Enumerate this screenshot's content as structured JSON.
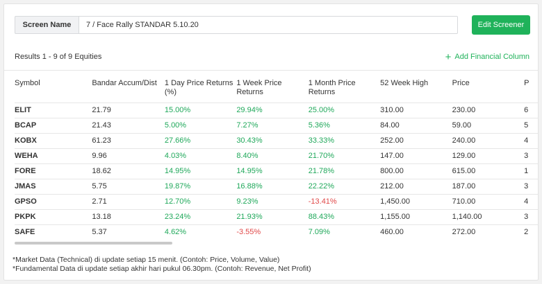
{
  "screener": {
    "label": "Screen Name",
    "value": "7 / Face Rally STANDAR 5.10.20",
    "edit_button": "Edit Screener"
  },
  "results_text": "Results 1 - 9 of 9 Equities",
  "add_column": {
    "icon": "plus-icon",
    "label": "Add Financial Column"
  },
  "colors": {
    "accent": "#1fb25a",
    "positive": "#1fa85a",
    "negative": "#e04848"
  },
  "table": {
    "columns": [
      "Symbol",
      "Bandar Accum/Dist",
      "1 Day Price Returns (%)",
      "1 Week Price Returns",
      "1 Month Price Returns",
      "52 Week High",
      "Price",
      "P"
    ],
    "rows": [
      [
        "ELIT",
        "21.79",
        "15.00%",
        "29.94%",
        "25.00%",
        "310.00",
        "230.00",
        "6"
      ],
      [
        "BCAP",
        "21.43",
        "5.00%",
        "7.27%",
        "5.36%",
        "84.00",
        "59.00",
        "5"
      ],
      [
        "KOBX",
        "61.23",
        "27.66%",
        "30.43%",
        "33.33%",
        "252.00",
        "240.00",
        "4"
      ],
      [
        "WEHA",
        "9.96",
        "4.03%",
        "8.40%",
        "21.70%",
        "147.00",
        "129.00",
        "3"
      ],
      [
        "FORE",
        "18.62",
        "14.95%",
        "14.95%",
        "21.78%",
        "800.00",
        "615.00",
        "1"
      ],
      [
        "JMAS",
        "5.75",
        "19.87%",
        "16.88%",
        "22.22%",
        "212.00",
        "187.00",
        "3"
      ],
      [
        "GPSO",
        "2.71",
        "12.70%",
        "9.23%",
        "-13.41%",
        "1,450.00",
        "710.00",
        "4"
      ],
      [
        "PKPK",
        "13.18",
        "23.24%",
        "21.93%",
        "88.43%",
        "1,155.00",
        "1,140.00",
        "3"
      ],
      [
        "SAFE",
        "5.37",
        "4.62%",
        "-3.55%",
        "7.09%",
        "460.00",
        "272.00",
        "2"
      ]
    ]
  },
  "footnotes": [
    "*Market Data (Technical) di update setiap 15 menit. (Contoh: Price, Volume, Value)",
    "*Fundamental Data di update setiap akhir hari pukul 06.30pm. (Contoh: Revenue, Net Profit)"
  ]
}
